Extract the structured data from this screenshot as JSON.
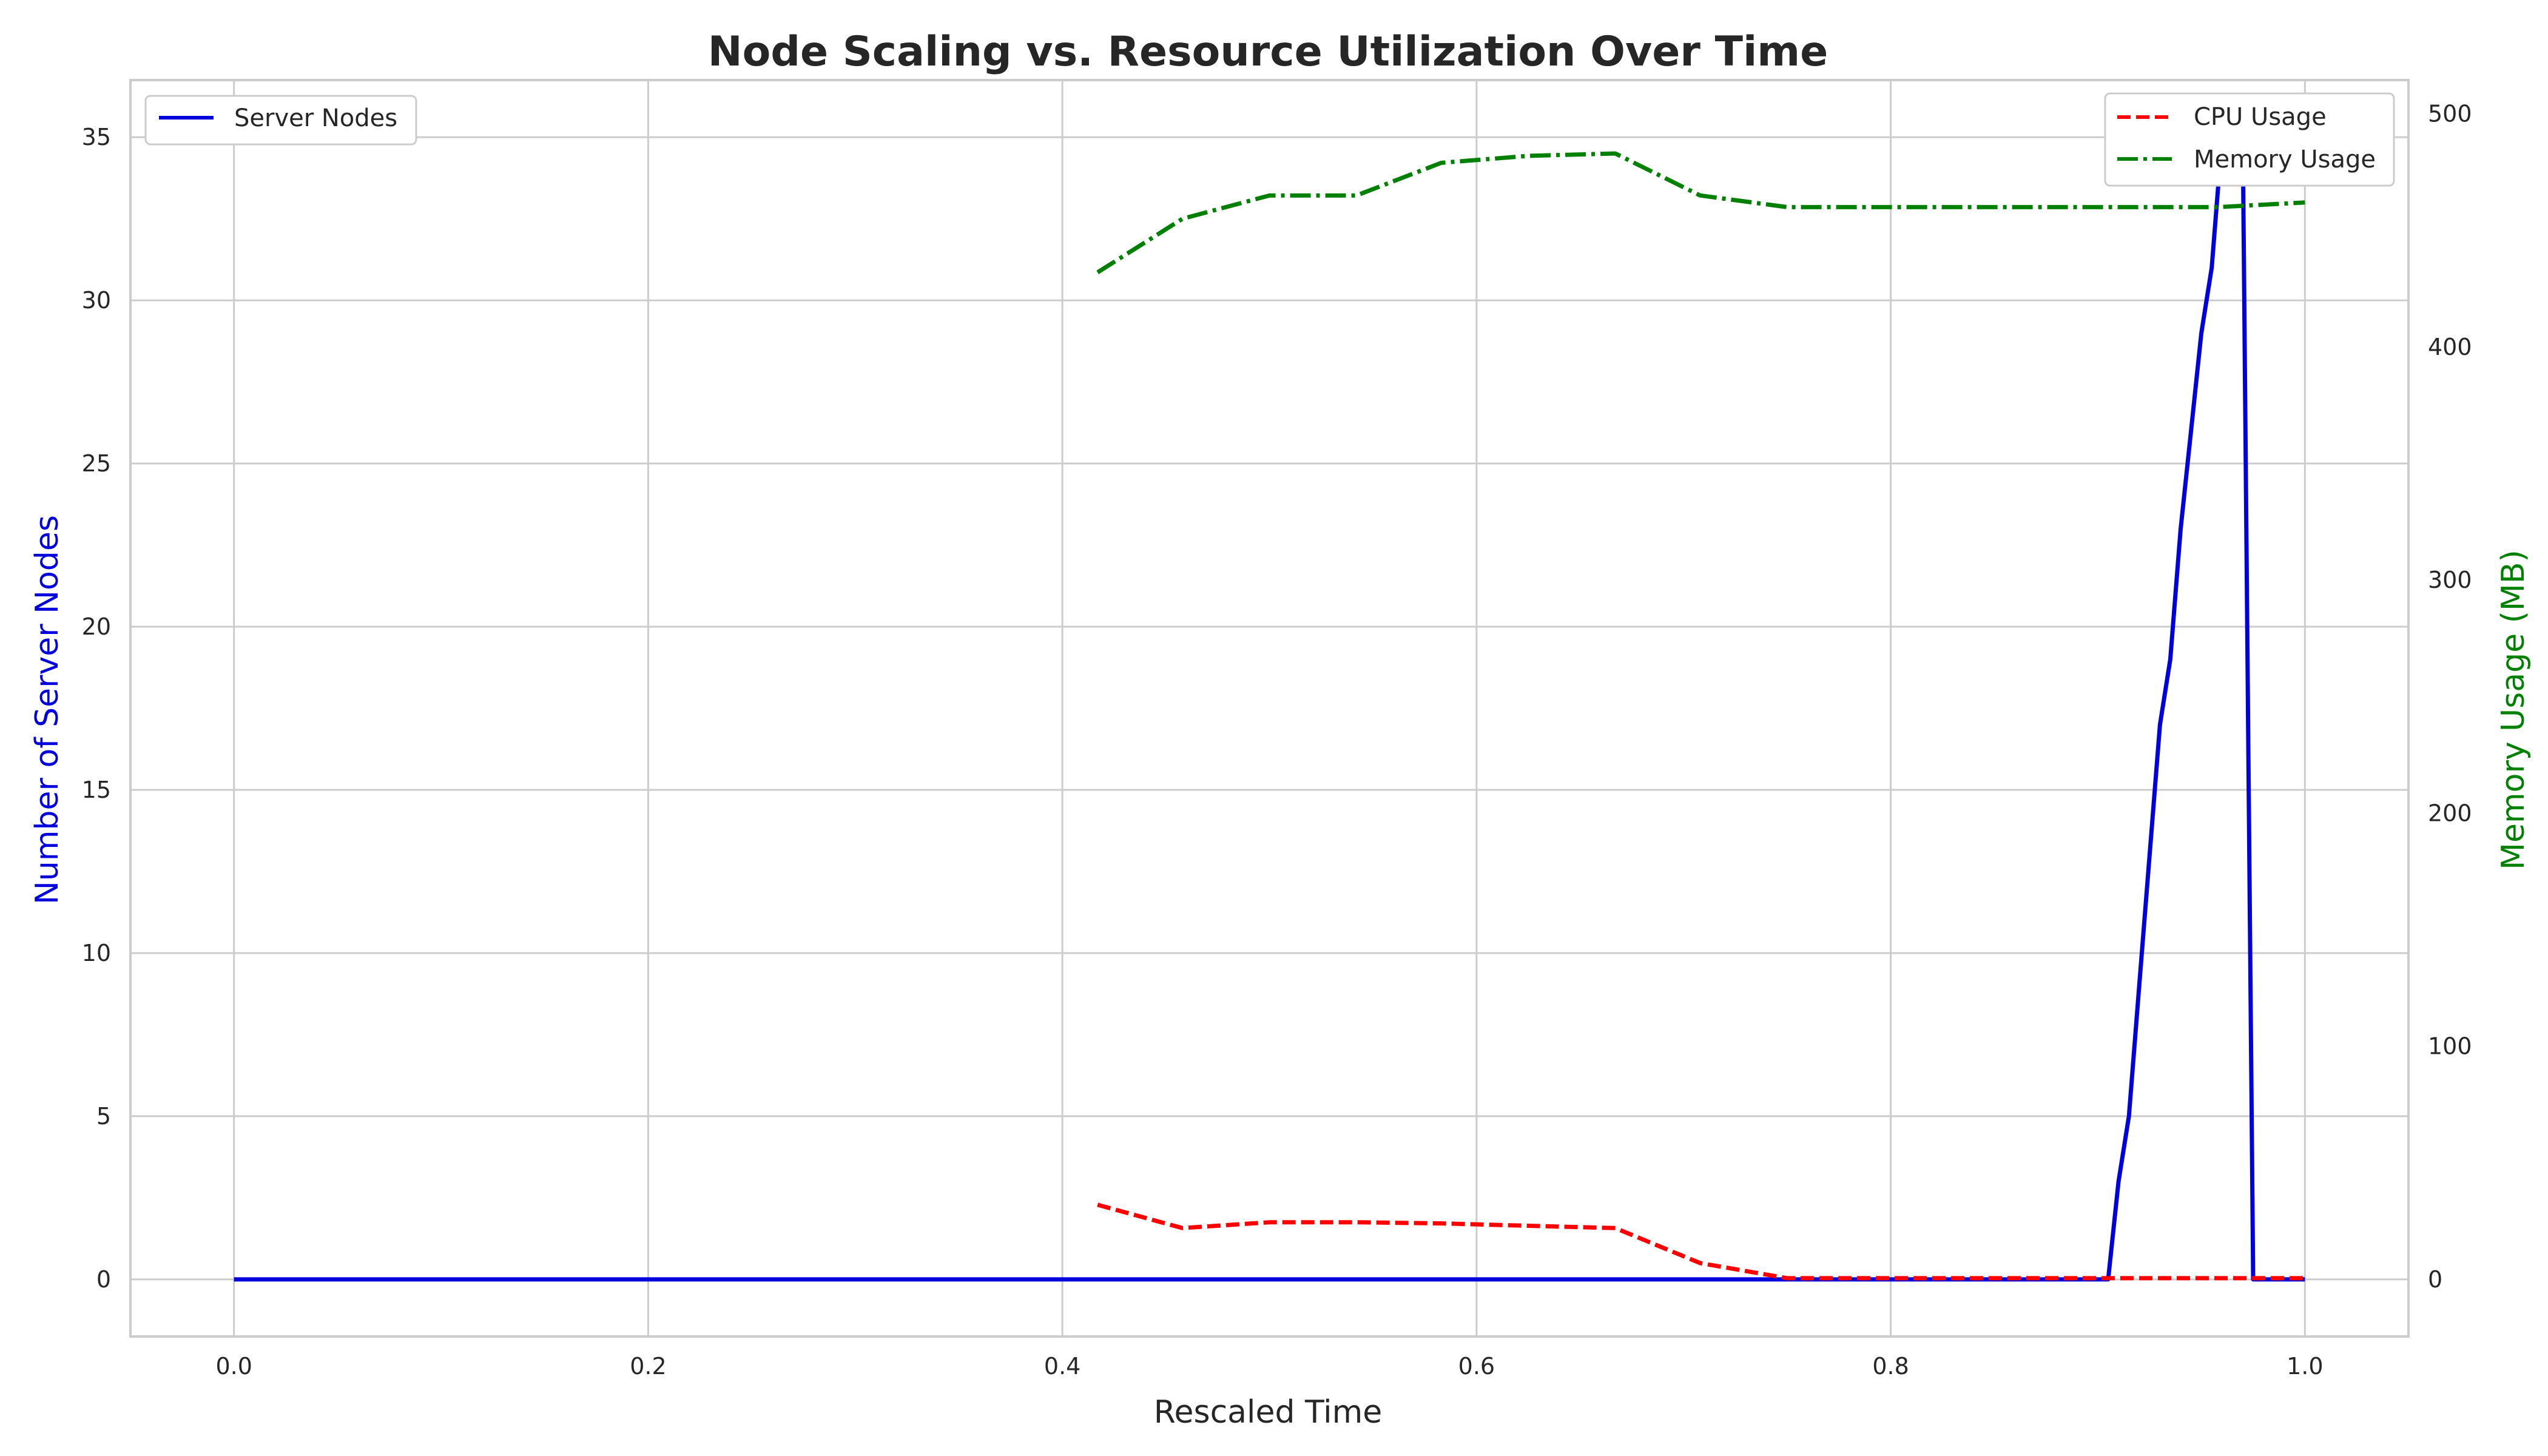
{
  "chart_data": {
    "type": "line",
    "title": "Node Scaling vs. Resource Utilization Over Time",
    "xlabel": "Rescaled Time",
    "ylabel_left": "Number of Server Nodes",
    "ylabel_right": "Memory Usage (MB)",
    "xlim": [
      -0.05,
      1.05
    ],
    "ylim_left": [
      -1.75,
      36.75
    ],
    "ylim_right": [
      -24.5,
      514.5
    ],
    "x_ticks": [
      "0.0",
      "0.2",
      "0.4",
      "0.6",
      "0.8",
      "1.0"
    ],
    "y_left_ticks": [
      "0",
      "5",
      "10",
      "15",
      "20",
      "25",
      "30",
      "35"
    ],
    "y_right_ticks": [
      "0",
      "100",
      "200",
      "300",
      "400",
      "500"
    ],
    "grid": true,
    "series": [
      {
        "name": "Server Nodes",
        "axis": "left",
        "color": "#0000dd",
        "style": "solid",
        "legend_position": "top-left",
        "x": [
          0.0,
          0.9,
          0.905,
          0.91,
          0.915,
          0.92,
          0.925,
          0.93,
          0.935,
          0.94,
          0.945,
          0.95,
          0.955,
          0.96,
          0.965,
          0.97,
          0.975,
          1.0
        ],
        "y": [
          0,
          0,
          0,
          3,
          5,
          9,
          13,
          17,
          19,
          23,
          26,
          29,
          31,
          35,
          35,
          35,
          0,
          0
        ]
      },
      {
        "name": "CPU Usage",
        "axis": "right",
        "color": "#ff0000",
        "style": "dashed",
        "legend_position": "top-right",
        "x": [
          0.417,
          0.458,
          0.5,
          0.542,
          0.583,
          0.625,
          0.667,
          0.708,
          0.75,
          0.792,
          0.833,
          0.875,
          0.917,
          0.958,
          1.0
        ],
        "y": [
          32,
          22,
          24.5,
          24.5,
          24,
          23,
          22,
          7,
          0.5,
          0.5,
          0.5,
          0.5,
          0.5,
          0.5,
          0.5
        ]
      },
      {
        "name": "Memory Usage",
        "axis": "right",
        "color": "#008000",
        "style": "dashdot",
        "legend_position": "top-right",
        "x": [
          0.417,
          0.458,
          0.5,
          0.542,
          0.583,
          0.625,
          0.667,
          0.708,
          0.75,
          0.792,
          0.833,
          0.875,
          0.917,
          0.958,
          1.0
        ],
        "y": [
          432,
          455,
          465,
          465,
          479,
          482,
          483,
          465,
          460,
          460,
          460,
          460,
          460,
          460,
          462
        ]
      }
    ]
  }
}
